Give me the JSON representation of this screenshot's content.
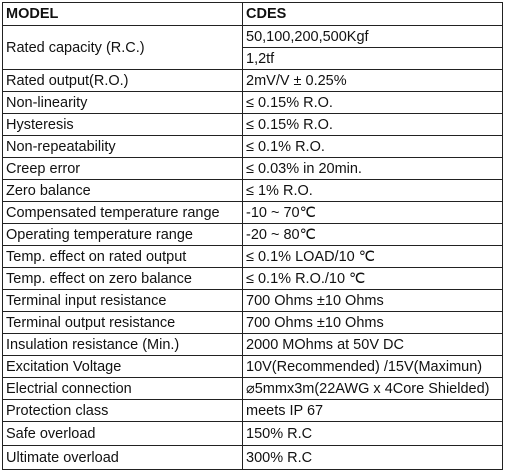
{
  "table": {
    "header": [
      "MODEL",
      "CDES"
    ],
    "rows": [
      [
        "Rated capacity (R.C.)",
        "50,100,200,500Kgf",
        "1,2tf"
      ],
      [
        "Rated output(R.O.)",
        "2mV/V ± 0.25%"
      ],
      [
        "Non-linearity",
        "≤ 0.15% R.O."
      ],
      [
        "Hysteresis",
        "≤ 0.15% R.O."
      ],
      [
        "Non-repeatability",
        "≤ 0.1% R.O."
      ],
      [
        "Creep error",
        "≤ 0.03% in 20min."
      ],
      [
        "Zero balance",
        "≤ 1% R.O."
      ],
      [
        "Compensated temperature range",
        "-10 ~ 70℃"
      ],
      [
        "Operating temperature range",
        "-20 ~ 80℃"
      ],
      [
        "Temp. effect on rated output",
        "≤ 0.1% LOAD/10 ℃"
      ],
      [
        "Temp. effect on zero balance",
        "≤ 0.1% R.O./10 ℃"
      ],
      [
        "Terminal input resistance",
        "700 Ohms ±10 Ohms"
      ],
      [
        "Terminal output resistance",
        "700 Ohms ±10 Ohms"
      ],
      [
        "Insulation resistance (Min.)",
        "2000 MOhms at 50V DC"
      ],
      [
        "Excitation Voltage",
        "10V(Recommended) /15V(Maximun)"
      ],
      [
        "Electrial connection",
        "⌀5mmx3m(22AWG x 4Core Shielded)"
      ],
      [
        "Protection class",
        "meets IP 67"
      ],
      [
        "Safe overload",
        "150% R.C"
      ],
      [
        "Ultimate overload",
        "300% R.C"
      ]
    ]
  }
}
